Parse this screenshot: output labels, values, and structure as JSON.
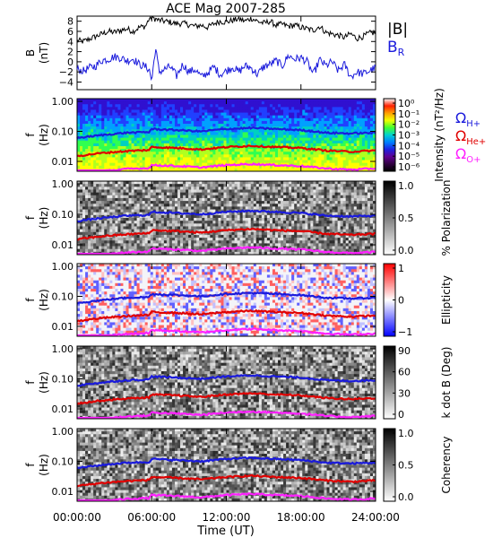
{
  "chart_data": {
    "type": "line",
    "title": "ACE Mag 2007-285",
    "xlabel": "Time (UT)",
    "xticks": [
      "00:00:00",
      "06:00:00",
      "12:00:00",
      "18:00:00",
      "24:00:00"
    ],
    "xlim_hours": [
      0,
      24
    ],
    "legend_top": [
      "|B|",
      "B_R"
    ],
    "legend_top_colors": [
      "#000000",
      "#1a1adc"
    ],
    "legend_freq": [
      "Ω_H+",
      "Ω_He+",
      "Ω_O+"
    ],
    "legend_freq_colors": [
      "#1a1adc",
      "#e00000",
      "#ff20ff"
    ],
    "panels": [
      {
        "id": "field",
        "ylabel_line1": "B",
        "ylabel_line2": "(nT)",
        "yticks": [
          "8",
          "6",
          "4",
          "2",
          "0",
          "−2",
          "−4"
        ],
        "ytick_values": [
          8,
          6,
          4,
          2,
          0,
          -2,
          -4
        ],
        "ylim": [
          -5.5,
          9
        ],
        "series": [
          {
            "name": "|B|",
            "color": "#000000",
            "x": [
              0,
              0.5,
              1,
              1.5,
              2,
              2.5,
              3,
              3.5,
              4,
              4.5,
              5,
              5.5,
              5.8,
              6,
              6.5,
              7,
              7.5,
              8,
              8.5,
              9,
              9.5,
              10,
              10.5,
              11,
              11.5,
              12,
              12.5,
              13,
              13.5,
              14,
              14.5,
              15,
              15.5,
              16,
              16.5,
              17,
              17.5,
              18,
              18.5,
              19,
              19.5,
              20,
              20.5,
              21,
              21.5,
              22,
              22.5,
              23,
              23.5,
              24
            ],
            "y": [
              4.2,
              4.0,
              4.5,
              5.0,
              5.5,
              6.0,
              5.8,
              6.2,
              6.5,
              6.0,
              6.8,
              7.0,
              8.5,
              8.8,
              8.2,
              8.0,
              7.8,
              7.5,
              7.6,
              7.3,
              7.0,
              7.2,
              6.8,
              7.5,
              8.0,
              7.8,
              8.2,
              8.5,
              8.0,
              8.6,
              8.0,
              7.6,
              8.0,
              7.2,
              7.4,
              7.0,
              7.2,
              6.8,
              6.5,
              6.2,
              7.0,
              5.8,
              5.5,
              5.2,
              4.8,
              5.5,
              4.6,
              5.0,
              5.6,
              5.8
            ]
          },
          {
            "name": "B_R",
            "color": "#1a1adc",
            "x": [
              0,
              0.5,
              1,
              1.5,
              2,
              2.5,
              3,
              3.5,
              4,
              4.5,
              5,
              5.5,
              5.8,
              6,
              6.3,
              6.6,
              7,
              7.5,
              8,
              8.5,
              9,
              9.5,
              10,
              10.5,
              11,
              11.5,
              12,
              12.5,
              13,
              13.5,
              14,
              14.5,
              15,
              15.5,
              16,
              16.5,
              17,
              17.5,
              18,
              18.5,
              19,
              19.5,
              20,
              20.5,
              21,
              21.5,
              22,
              22.5,
              23,
              23.5,
              24
            ],
            "y": [
              -1.5,
              -1.8,
              -1.2,
              -0.8,
              0.3,
              0.5,
              1.0,
              0.8,
              0.2,
              0.6,
              -0.5,
              -1.0,
              -1.5,
              -3.8,
              2.8,
              -2.0,
              -1.5,
              -1.0,
              -2.8,
              -0.5,
              -2.0,
              -1.5,
              -3.0,
              -2.2,
              -1.0,
              -2.5,
              -1.8,
              -1.0,
              -2.0,
              -0.8,
              -1.2,
              -2.5,
              -1.0,
              -0.5,
              0.2,
              -0.8,
              1.2,
              0.5,
              0.8,
              0.0,
              -2.5,
              0.4,
              -0.8,
              0.0,
              -1.8,
              -0.5,
              -3.0,
              -2.0,
              -2.4,
              -1.8,
              -1.2
            ]
          }
        ]
      },
      {
        "id": "intensity",
        "ylabel_line1": "f",
        "ylabel_line2": "(Hz)",
        "yticks": [
          "1.00",
          "0.10",
          "0.01"
        ],
        "colorbar_label": "Intensity (nT²/Hz)",
        "colorbar_ticks": [
          "10⁰",
          "10⁻¹",
          "10⁻²",
          "10⁻³",
          "10⁻⁴",
          "10⁻⁵",
          "10⁻⁶"
        ],
        "colorbar_colors": [
          "#ffffff",
          "#ff2000",
          "#ffa000",
          "#f0ff00",
          "#40ff30",
          "#00d0d0",
          "#0080ff",
          "#2020e0",
          "#600090",
          "#300040",
          "#000000"
        ]
      },
      {
        "id": "polarization",
        "ylabel_line1": "f",
        "ylabel_line2": "(Hz)",
        "yticks": [
          "1.00",
          "0.10",
          "0.01"
        ],
        "colorbar_label": "% Polarization",
        "colorbar_ticks": [
          "1.0",
          "0.5",
          "0.0"
        ],
        "colorbar_colors": [
          "#000000",
          "#ffffff"
        ]
      },
      {
        "id": "ellipticity",
        "ylabel_line1": "f",
        "ylabel_line2": "(Hz)",
        "yticks": [
          "1.00",
          "0.10",
          "0.01"
        ],
        "colorbar_label": "Ellipticity",
        "colorbar_ticks": [
          "1",
          "0",
          "−1"
        ],
        "colorbar_colors": [
          "#ff0000",
          "#ffffff",
          "#0000ff"
        ]
      },
      {
        "id": "kdotb",
        "ylabel_line1": "f",
        "ylabel_line2": "(Hz)",
        "yticks": [
          "1.00",
          "0.10",
          "0.01"
        ],
        "colorbar_label": "k dot B (Deg)",
        "colorbar_ticks": [
          "90",
          "60",
          "30",
          "0"
        ],
        "colorbar_colors": [
          "#000000",
          "#ffffff"
        ]
      },
      {
        "id": "coherency",
        "ylabel_line1": "f",
        "ylabel_line2": "(Hz)",
        "yticks": [
          "1.00",
          "0.10",
          "0.01"
        ],
        "colorbar_label": "Coherency",
        "colorbar_ticks": [
          "1.0",
          "0.5",
          "0.0"
        ],
        "colorbar_colors": [
          "#000000",
          "#ffffff"
        ]
      }
    ],
    "gyrofrequency_series": [
      {
        "name": "Ω_H+",
        "color": "#1a1adc",
        "x": [
          0,
          2,
          4,
          5.8,
          6,
          8,
          10,
          12,
          14,
          16,
          18,
          20,
          22,
          24
        ],
        "y": [
          0.06,
          0.075,
          0.09,
          0.095,
          0.12,
          0.11,
          0.1,
          0.12,
          0.13,
          0.12,
          0.11,
          0.09,
          0.085,
          0.09
        ]
      },
      {
        "name": "Ω_He+",
        "color": "#e00000",
        "x": [
          0,
          2,
          4,
          5.8,
          6,
          8,
          10,
          12,
          14,
          16,
          18,
          20,
          22,
          24
        ],
        "y": [
          0.015,
          0.019,
          0.022,
          0.024,
          0.03,
          0.028,
          0.025,
          0.03,
          0.033,
          0.03,
          0.028,
          0.023,
          0.021,
          0.023
        ]
      },
      {
        "name": "Ω_O+",
        "color": "#ff20ff",
        "x": [
          0,
          2,
          4,
          5.8,
          6,
          8,
          10,
          12,
          14,
          16,
          18,
          20,
          22,
          24
        ],
        "y": [
          0.0037,
          0.0047,
          0.0056,
          0.006,
          0.0075,
          0.007,
          0.0063,
          0.0075,
          0.0082,
          0.0075,
          0.007,
          0.0058,
          0.0053,
          0.0058
        ]
      }
    ]
  }
}
